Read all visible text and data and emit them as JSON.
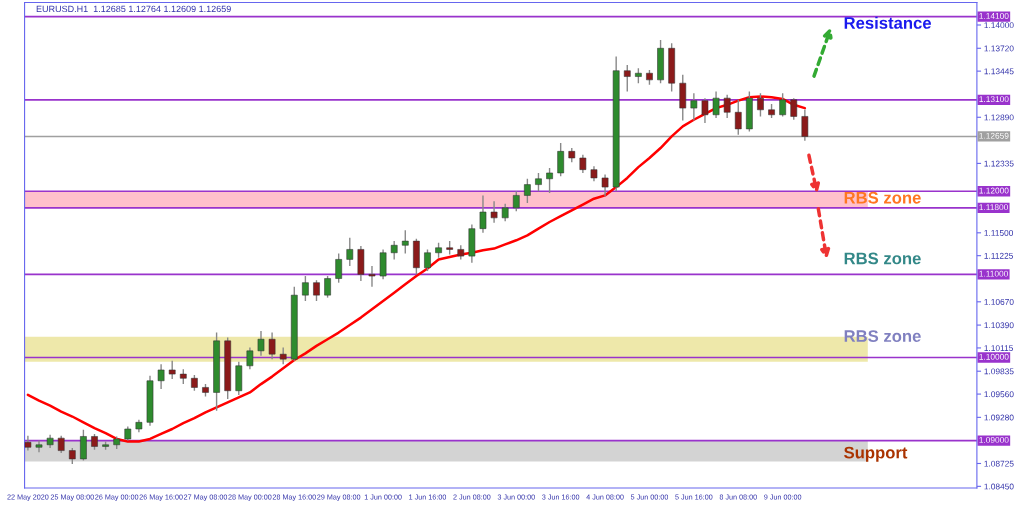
{
  "chart_data": {
    "type": "candlestick",
    "title": "EURUSD.H1  1.12685 1.12764 1.12609 1.12659",
    "categories": [
      "22 May 2020",
      null,
      null,
      null,
      "25 May 08:00",
      null,
      null,
      null,
      "26 May 00:00",
      null,
      null,
      null,
      "26 May 16:00",
      null,
      null,
      null,
      "27 May 08:00",
      null,
      null,
      null,
      "28 May 00:00",
      null,
      null,
      null,
      "28 May 16:00",
      null,
      null,
      null,
      "29 May 08:00",
      null,
      null,
      null,
      "1 Jun 00:00",
      null,
      null,
      null,
      "1 Jun 16:00",
      null,
      null,
      null,
      "2 Jun 08:00",
      null,
      null,
      null,
      "3 Jun 00:00",
      null,
      null,
      null,
      "3 Jun 16:00",
      null,
      null,
      null,
      "4 Jun 08:00",
      null,
      null,
      null,
      "5 Jun 00:00",
      null,
      null,
      null,
      "5 Jun 16:00",
      null,
      null,
      null,
      "8 Jun 08:00",
      null,
      null,
      null,
      "9 Jun 00:00",
      null,
      null
    ],
    "ohlc": [
      [
        1.0898,
        1.0906,
        1.0888,
        1.0892
      ],
      [
        1.0892,
        1.09,
        1.0886,
        1.0895
      ],
      [
        1.0895,
        1.0907,
        1.0891,
        1.0903
      ],
      [
        1.0903,
        1.0906,
        1.0885,
        1.0888
      ],
      [
        1.0888,
        1.0891,
        1.0872,
        1.0878
      ],
      [
        1.0878,
        1.0913,
        1.0876,
        1.0905
      ],
      [
        1.0905,
        1.0908,
        1.0889,
        1.0893
      ],
      [
        1.0893,
        1.0899,
        1.0889,
        1.0895
      ],
      [
        1.0895,
        1.0905,
        1.089,
        1.0902
      ],
      [
        1.0902,
        1.0917,
        1.09,
        1.0914
      ],
      [
        1.0914,
        1.0925,
        1.091,
        1.0922
      ],
      [
        1.0922,
        1.0978,
        1.0918,
        1.0972
      ],
      [
        1.0972,
        1.0992,
        1.0962,
        1.0985
      ],
      [
        1.0985,
        1.0996,
        1.0974,
        1.098
      ],
      [
        1.098,
        1.0986,
        1.0968,
        1.0975
      ],
      [
        1.0975,
        1.0979,
        1.096,
        1.0964
      ],
      [
        1.0964,
        1.0968,
        1.0953,
        1.0958
      ],
      [
        1.0958,
        1.103,
        1.0936,
        1.102
      ],
      [
        1.102,
        1.1024,
        1.095,
        1.096
      ],
      [
        1.096,
        1.0995,
        1.0955,
        1.099
      ],
      [
        1.099,
        1.1012,
        1.0986,
        1.1008
      ],
      [
        1.1008,
        1.1032,
        1.1002,
        1.1022
      ],
      [
        1.1022,
        1.103,
        1.0998,
        1.1004
      ],
      [
        1.1004,
        1.1012,
        1.0992,
        1.0998
      ],
      [
        1.0998,
        1.1085,
        1.0996,
        1.1075
      ],
      [
        1.1075,
        1.1098,
        1.1068,
        1.109
      ],
      [
        1.109,
        1.1093,
        1.1068,
        1.1075
      ],
      [
        1.1075,
        1.1098,
        1.1072,
        1.1095
      ],
      [
        1.1095,
        1.1125,
        1.109,
        1.1118
      ],
      [
        1.1118,
        1.1144,
        1.111,
        1.113
      ],
      [
        1.113,
        1.1134,
        1.1092,
        1.11
      ],
      [
        1.11,
        1.111,
        1.1085,
        1.1098
      ],
      [
        1.1098,
        1.113,
        1.1094,
        1.1126
      ],
      [
        1.1126,
        1.114,
        1.1118,
        1.1135
      ],
      [
        1.1135,
        1.1153,
        1.1125,
        1.114
      ],
      [
        1.114,
        1.1143,
        1.11,
        1.1108
      ],
      [
        1.1108,
        1.113,
        1.1104,
        1.1126
      ],
      [
        1.1126,
        1.1138,
        1.112,
        1.1132
      ],
      [
        1.1132,
        1.114,
        1.1124,
        1.113
      ],
      [
        1.113,
        1.1135,
        1.1118,
        1.1122
      ],
      [
        1.1122,
        1.116,
        1.1114,
        1.1155
      ],
      [
        1.1155,
        1.1195,
        1.115,
        1.1175
      ],
      [
        1.1175,
        1.1188,
        1.1162,
        1.1168
      ],
      [
        1.1168,
        1.1185,
        1.1164,
        1.118
      ],
      [
        1.118,
        1.12,
        1.1176,
        1.1195
      ],
      [
        1.1195,
        1.1215,
        1.1186,
        1.1208
      ],
      [
        1.1208,
        1.1222,
        1.12,
        1.1215
      ],
      [
        1.1215,
        1.1228,
        1.1198,
        1.1222
      ],
      [
        1.1222,
        1.1258,
        1.1218,
        1.1248
      ],
      [
        1.1248,
        1.1252,
        1.1235,
        1.124
      ],
      [
        1.124,
        1.1244,
        1.1222,
        1.1226
      ],
      [
        1.1226,
        1.123,
        1.1212,
        1.1216
      ],
      [
        1.1216,
        1.122,
        1.1194,
        1.1205
      ],
      [
        1.1205,
        1.1362,
        1.12,
        1.1345
      ],
      [
        1.1345,
        1.1352,
        1.132,
        1.1338
      ],
      [
        1.1338,
        1.1348,
        1.133,
        1.1342
      ],
      [
        1.1342,
        1.1346,
        1.1328,
        1.1334
      ],
      [
        1.1334,
        1.1382,
        1.133,
        1.1372
      ],
      [
        1.1372,
        1.1378,
        1.132,
        1.133
      ],
      [
        1.133,
        1.134,
        1.1285,
        1.13
      ],
      [
        1.13,
        1.1318,
        1.1285,
        1.1309
      ],
      [
        1.1309,
        1.1312,
        1.1282,
        1.1292
      ],
      [
        1.1292,
        1.132,
        1.1288,
        1.1312
      ],
      [
        1.1312,
        1.1316,
        1.1288,
        1.1295
      ],
      [
        1.1295,
        1.131,
        1.1268,
        1.1275
      ],
      [
        1.1275,
        1.132,
        1.1272,
        1.1312
      ],
      [
        1.1312,
        1.1318,
        1.129,
        1.1298
      ],
      [
        1.1298,
        1.1305,
        1.1288,
        1.1292
      ],
      [
        1.1292,
        1.1318,
        1.129,
        1.131
      ],
      [
        1.131,
        1.1312,
        1.1286,
        1.129
      ],
      [
        1.129,
        1.1298,
        1.12609,
        1.12659
      ]
    ],
    "series": [
      {
        "type": "line",
        "color": "#ff0000",
        "values": [
          1.0955,
          1.0948,
          1.0942,
          1.0935,
          1.0929,
          1.0922,
          1.0915,
          1.0909,
          1.0902,
          1.0899,
          1.0899,
          1.0902,
          1.0908,
          1.0914,
          1.0921,
          1.0927,
          1.0934,
          1.094,
          1.0946,
          1.0952,
          1.0958,
          1.0968,
          1.0977,
          1.0987,
          1.0997,
          1.1005,
          1.1014,
          1.1022,
          1.103,
          1.1039,
          1.1048,
          1.1058,
          1.1068,
          1.1078,
          1.1088,
          1.1098,
          1.1107,
          1.1118,
          1.1121,
          1.1124,
          1.1126,
          1.1129,
          1.1131,
          1.1136,
          1.1141,
          1.1147,
          1.1155,
          1.1163,
          1.117,
          1.1177,
          1.1184,
          1.1191,
          1.1195,
          1.1205,
          1.1216,
          1.1229,
          1.124,
          1.1252,
          1.1266,
          1.1278,
          1.1286,
          1.1293,
          1.13,
          1.1304,
          1.1309,
          1.1313,
          1.1314,
          1.1313,
          1.1311,
          1.1304,
          1.13
        ]
      }
    ],
    "ylim": [
      1.0843,
      1.1427
    ],
    "yticks": [
      {
        "value": 1.0845,
        "label": "1.08450"
      },
      {
        "value": 1.08725,
        "label": "1.08725"
      },
      {
        "value": 1.0928,
        "label": "1.09280"
      },
      {
        "value": 1.0956,
        "label": "1.09560"
      },
      {
        "value": 1.09835,
        "label": "1.09835"
      },
      {
        "value": 1.10115,
        "label": "1.10115"
      },
      {
        "value": 1.1039,
        "label": "1.10390"
      },
      {
        "value": 1.1067,
        "label": "1.10670"
      },
      {
        "value": 1.11225,
        "label": "1.11225"
      },
      {
        "value": 1.115,
        "label": "1.11500"
      },
      {
        "value": 1.12335,
        "label": "1.12335"
      },
      {
        "value": 1.1289,
        "label": "1.12890"
      },
      {
        "value": 1.13445,
        "label": "1.13445"
      },
      {
        "value": 1.1372,
        "label": "1.13720"
      },
      {
        "value": 1.14,
        "label": "1.14000"
      }
    ],
    "ref_lines": [
      {
        "axis": "y",
        "value": 1.141,
        "label": "1.14100",
        "color": "#9933cc"
      },
      {
        "axis": "y",
        "value": 1.131,
        "label": "1.13100",
        "color": "#9933cc"
      },
      {
        "axis": "y",
        "value": 1.12659,
        "label": "1.12659",
        "color": "#a0a0a0"
      },
      {
        "axis": "y",
        "value": 1.12,
        "label": "1.12000",
        "color": "#9933cc"
      },
      {
        "axis": "y",
        "value": 1.118,
        "label": "1.11800",
        "color": "#9933cc"
      },
      {
        "axis": "y",
        "value": 1.11,
        "label": "1.11000",
        "color": "#9933cc"
      },
      {
        "axis": "y",
        "value": 1.1,
        "label": "1.10000",
        "color": "#9933cc"
      },
      {
        "axis": "y",
        "value": 1.09,
        "label": "1.09000",
        "color": "#9933cc"
      }
    ],
    "bands": [
      {
        "axis": "y",
        "from": 1.118,
        "to": 1.12,
        "color": "#ffc0cb"
      },
      {
        "axis": "y",
        "from": 1.0995,
        "to": 1.1025,
        "color": "#eee8aa"
      },
      {
        "axis": "y",
        "from": 1.0875,
        "to": 1.09,
        "color": "#d3d3d3"
      }
    ],
    "annotations": [
      "Resistance",
      "RBS zone",
      "RBS zone",
      "RBS zone",
      "Support"
    ],
    "grid": false,
    "legend": false
  }
}
